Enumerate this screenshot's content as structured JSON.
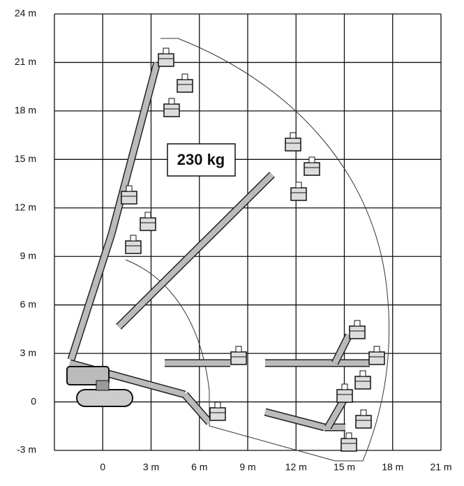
{
  "y_axis": {
    "labels": [
      "24 m",
      "21 m",
      "18 m",
      "15 m",
      "12 m",
      "9 m",
      "6 m",
      "3 m",
      "0",
      "-3 m"
    ]
  },
  "x_axis": {
    "labels": [
      "0",
      "3 m",
      "6 m",
      "9 m",
      "12 m",
      "15 m",
      "18 m",
      "21 m"
    ]
  },
  "load_label": "230 kg"
}
